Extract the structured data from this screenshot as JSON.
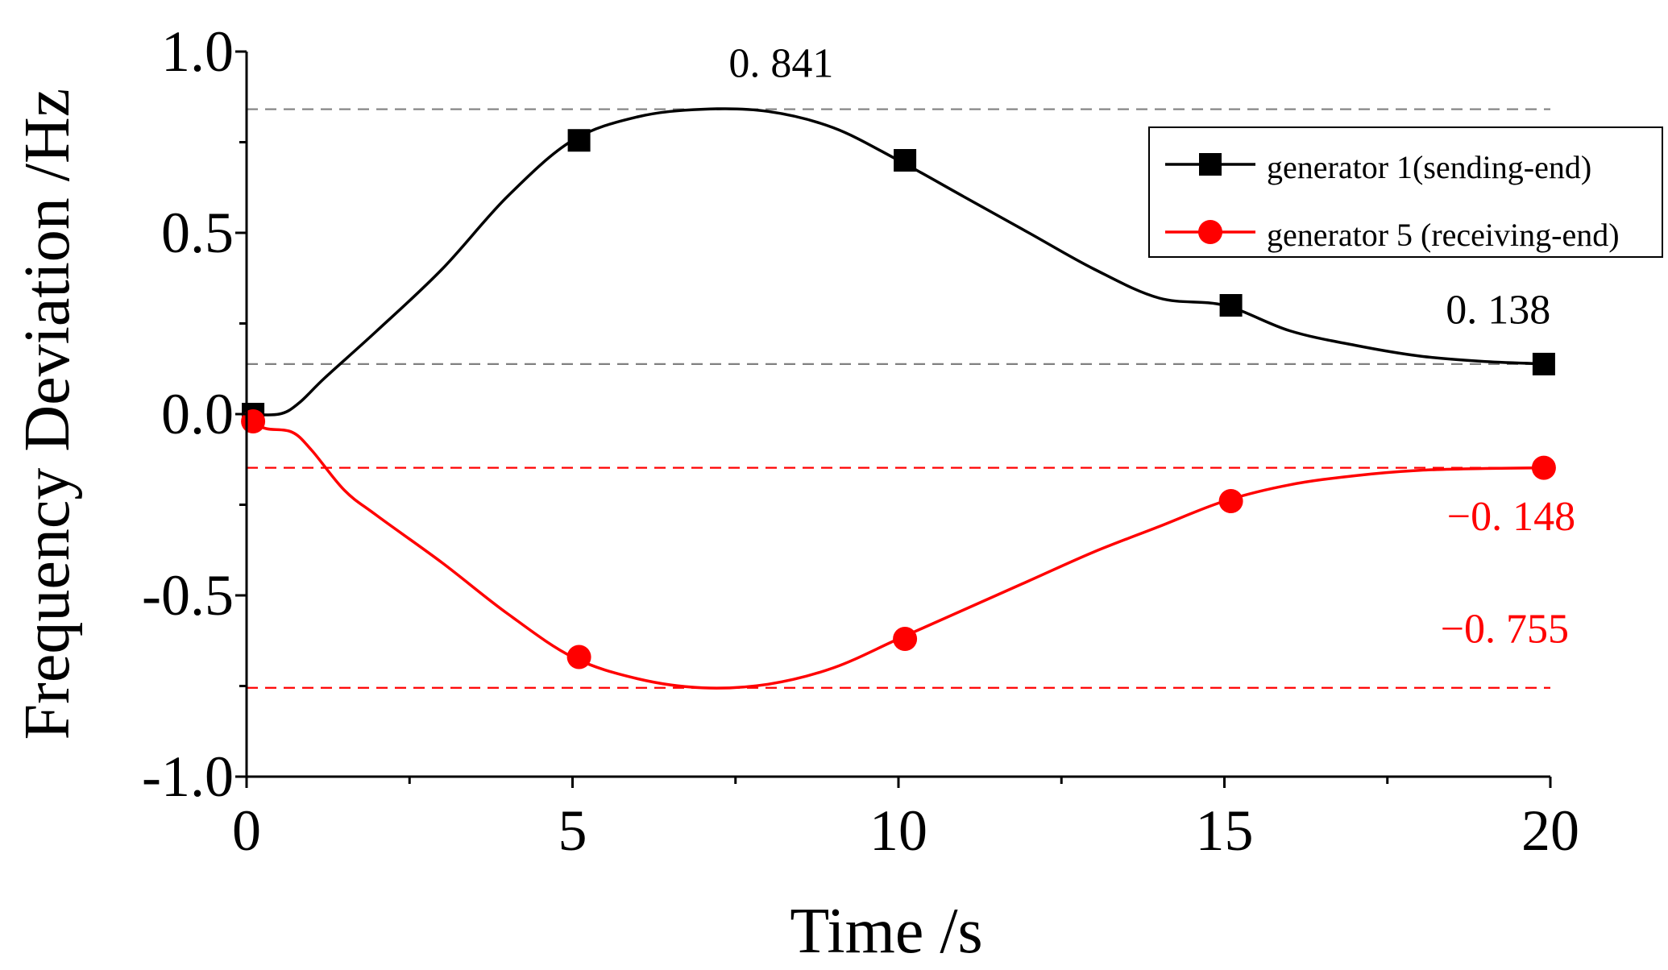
{
  "chart_data": {
    "type": "line",
    "xlabel": "Time /s",
    "ylabel": "Frequency Deviation /Hz",
    "xlim": [
      0,
      20
    ],
    "ylim": [
      -1.0,
      1.0
    ],
    "x_ticks": [
      "0",
      "5",
      "10",
      "15",
      "20"
    ],
    "y_ticks": [
      "1.0",
      "0.5",
      "0.0",
      "-0.5",
      "-1.0"
    ],
    "series": [
      {
        "name": "generator 1(sending-end)",
        "color": "#000000",
        "marker": "square",
        "x": [
          0,
          0.5,
          0.8,
          1.2,
          2,
          3,
          4,
          5,
          6,
          7,
          8,
          9,
          10,
          11,
          12,
          13,
          14,
          15,
          16,
          17,
          18,
          19,
          20
        ],
        "y": [
          0.0,
          0.0,
          0.03,
          0.1,
          0.23,
          0.4,
          0.6,
          0.755,
          0.82,
          0.841,
          0.835,
          0.79,
          0.7,
          0.6,
          0.5,
          0.4,
          0.32,
          0.3,
          0.23,
          0.19,
          0.16,
          0.145,
          0.138
        ],
        "marker_points": {
          "x": [
            0.1,
            5.1,
            10.1,
            15.1,
            19.9
          ],
          "y": [
            0.0,
            0.755,
            0.7,
            0.3,
            0.138
          ]
        }
      },
      {
        "name": "generator 5 (receiving-end)",
        "color": "#ff0000",
        "marker": "circle",
        "x": [
          0,
          0.3,
          0.7,
          1.0,
          1.5,
          2,
          3,
          4,
          5,
          6,
          7,
          8,
          9,
          10,
          11,
          12,
          13,
          14,
          15,
          16,
          17,
          18,
          19,
          20
        ],
        "y": [
          -0.02,
          -0.04,
          -0.05,
          -0.1,
          -0.21,
          -0.28,
          -0.41,
          -0.55,
          -0.67,
          -0.73,
          -0.755,
          -0.745,
          -0.7,
          -0.62,
          -0.54,
          -0.46,
          -0.38,
          -0.31,
          -0.24,
          -0.195,
          -0.17,
          -0.155,
          -0.15,
          -0.148
        ],
        "marker_points": {
          "x": [
            0.1,
            5.1,
            10.1,
            15.1,
            19.9
          ],
          "y": [
            -0.02,
            -0.67,
            -0.62,
            -0.24,
            -0.148
          ]
        }
      }
    ],
    "reference_lines": [
      {
        "y": 0.841,
        "color": "#808080"
      },
      {
        "y": 0.138,
        "color": "#808080"
      },
      {
        "y": -0.148,
        "color": "#ff0000"
      },
      {
        "y": -0.755,
        "color": "#ff0000"
      }
    ],
    "annotations": [
      {
        "text": "0. 841",
        "x": 8.2,
        "y": 0.93,
        "color": "#000000"
      },
      {
        "text": "0. 138",
        "x": 19.2,
        "y": 0.25,
        "color": "#000000"
      },
      {
        "text": "−0. 148",
        "x": 19.4,
        "y": -0.32,
        "color": "#ff0000"
      },
      {
        "text": "−0. 755",
        "x": 19.3,
        "y": -0.63,
        "color": "#ff0000"
      }
    ],
    "legend_position": "top-right"
  }
}
